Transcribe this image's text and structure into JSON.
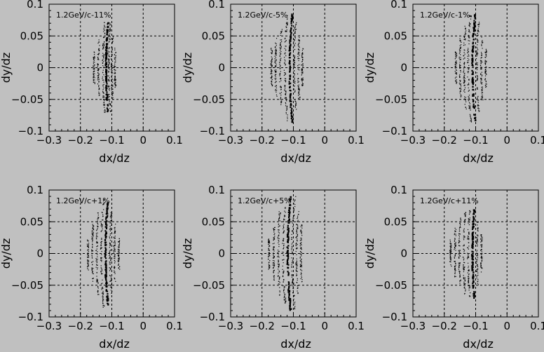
{
  "colors": {
    "background": "#c0c0c0",
    "foreground": "#000000"
  },
  "chart_data": [
    {
      "type": "scatter",
      "title": "1.2GeV/c-11%",
      "xlabel": "dx/dz",
      "ylabel": "dy/dz",
      "xlim": [
        -0.3,
        0.1
      ],
      "ylim": [
        -0.1,
        0.1
      ],
      "xticks": [
        "−0.3",
        "−0.2",
        "−0.1",
        "0",
        "0.1"
      ],
      "yticks": [
        "0.1",
        "0.05",
        "0",
        "−0.05",
        "−0.1"
      ],
      "grid": "dashed at x=-0.2,-0.1,0 and y=0.05,0,-0.05",
      "bands": [
        {
          "x0": -0.157,
          "halfheight": 0.025
        },
        {
          "x0": -0.143,
          "halfheight": 0.045
        },
        {
          "x0": -0.128,
          "halfheight": 0.07
        },
        {
          "x0": -0.118,
          "halfheight": 0.07,
          "dominant": true
        },
        {
          "x0": -0.11,
          "halfheight": 0.07
        },
        {
          "x0": -0.1,
          "halfheight": 0.05
        },
        {
          "x0": -0.09,
          "halfheight": 0.03
        }
      ]
    },
    {
      "type": "scatter",
      "title": "1.2GeV/c-5%",
      "xlabel": "dx/dz",
      "ylabel": "dy/dz",
      "xlim": [
        -0.3,
        0.1
      ],
      "ylim": [
        -0.1,
        0.1
      ],
      "xticks": [
        "−0.3",
        "−0.2",
        "−0.1",
        "0",
        "0.1"
      ],
      "yticks": [
        "0.1",
        "0.05",
        "0",
        "−0.05",
        "−0.1"
      ],
      "grid": "dashed at x=-0.2,-0.1,0 and y=0.05,0,-0.05",
      "bands": [
        {
          "x0": -0.17,
          "halfheight": 0.03
        },
        {
          "x0": -0.157,
          "halfheight": 0.045
        },
        {
          "x0": -0.142,
          "halfheight": 0.06
        },
        {
          "x0": -0.127,
          "halfheight": 0.085
        },
        {
          "x0": -0.112,
          "halfheight": 0.085,
          "dominant": true
        },
        {
          "x0": -0.098,
          "halfheight": 0.07
        },
        {
          "x0": -0.084,
          "halfheight": 0.05
        },
        {
          "x0": -0.072,
          "halfheight": 0.03
        }
      ]
    },
    {
      "type": "scatter",
      "title": "1.2GeV/c-1%",
      "xlabel": "dx/dz",
      "ylabel": "dy/dz",
      "xlim": [
        -0.3,
        0.1
      ],
      "ylim": [
        -0.1,
        0.1
      ],
      "xticks": [
        "−0.3",
        "−0.2",
        "−0.1",
        "0",
        "0.1"
      ],
      "yticks": [
        "0.1",
        "0.05",
        "0",
        "−0.05",
        "−0.1"
      ],
      "grid": "dashed at x=-0.2,-0.1,0 and y=0.05,0,-0.05",
      "bands": [
        {
          "x0": -0.163,
          "halfheight": 0.025
        },
        {
          "x0": -0.15,
          "halfheight": 0.045
        },
        {
          "x0": -0.137,
          "halfheight": 0.065
        },
        {
          "x0": -0.124,
          "halfheight": 0.085
        },
        {
          "x0": -0.11,
          "halfheight": 0.085,
          "dominant": true
        },
        {
          "x0": -0.096,
          "halfheight": 0.07
        },
        {
          "x0": -0.082,
          "halfheight": 0.05
        },
        {
          "x0": -0.068,
          "halfheight": 0.03
        }
      ]
    },
    {
      "type": "scatter",
      "title": "1.2GeV/c+1%",
      "xlabel": "dx/dz",
      "ylabel": "dy/dz",
      "xlim": [
        -0.3,
        0.1
      ],
      "ylim": [
        -0.1,
        0.1
      ],
      "xticks": [
        "−0.3",
        "−0.2",
        "−0.1",
        "0",
        "0.1"
      ],
      "yticks": [
        "0.1",
        "0.05",
        "0",
        "−0.05",
        "−0.1"
      ],
      "grid": "dashed at x=-0.2,-0.1,0 and y=0.05,0,-0.05",
      "bands": [
        {
          "x0": -0.176,
          "halfheight": 0.025
        },
        {
          "x0": -0.162,
          "halfheight": 0.045
        },
        {
          "x0": -0.148,
          "halfheight": 0.065
        },
        {
          "x0": -0.134,
          "halfheight": 0.085
        },
        {
          "x0": -0.12,
          "halfheight": 0.08,
          "dominant": true
        },
        {
          "x0": -0.106,
          "halfheight": 0.065
        },
        {
          "x0": -0.092,
          "halfheight": 0.045
        },
        {
          "x0": -0.078,
          "halfheight": 0.025
        }
      ]
    },
    {
      "type": "scatter",
      "title": "1.2GeV/c+5%",
      "xlabel": "dx/dz",
      "ylabel": "dy/dz",
      "xlim": [
        -0.3,
        0.1
      ],
      "ylim": [
        -0.1,
        0.1
      ],
      "xticks": [
        "−0.3",
        "−0.2",
        "−0.1",
        "0",
        "0.1"
      ],
      "yticks": [
        "0.1",
        "0.05",
        "0",
        "−0.05",
        "−0.1"
      ],
      "grid": "dashed at x=-0.2,-0.1,0 and y=0.05,0,-0.05",
      "bands": [
        {
          "x0": -0.178,
          "halfheight": 0.025
        },
        {
          "x0": -0.163,
          "halfheight": 0.045
        },
        {
          "x0": -0.148,
          "halfheight": 0.065
        },
        {
          "x0": -0.133,
          "halfheight": 0.08
        },
        {
          "x0": -0.118,
          "halfheight": 0.09,
          "dominant": true
        },
        {
          "x0": -0.104,
          "halfheight": 0.09
        },
        {
          "x0": -0.09,
          "halfheight": 0.065
        },
        {
          "x0": -0.076,
          "halfheight": 0.045
        }
      ]
    },
    {
      "type": "scatter",
      "title": "1.2GeV/c+11%",
      "xlabel": "dx/dz",
      "ylabel": "dy/dz",
      "xlim": [
        -0.3,
        0.1
      ],
      "ylim": [
        -0.1,
        0.1
      ],
      "xticks": [
        "−0.3",
        "−0.2",
        "−0.1",
        "0",
        "0.1"
      ],
      "yticks": [
        "0.1",
        "0.05",
        "0",
        "−0.05",
        "−0.1"
      ],
      "grid": "dashed at x=-0.2,-0.1,0 and y=0.05,0,-0.05",
      "bands": [
        {
          "x0": -0.18,
          "halfheight": 0.02
        },
        {
          "x0": -0.166,
          "halfheight": 0.04
        },
        {
          "x0": -0.152,
          "halfheight": 0.055
        },
        {
          "x0": -0.138,
          "halfheight": 0.065
        },
        {
          "x0": -0.124,
          "halfheight": 0.07
        },
        {
          "x0": -0.11,
          "halfheight": 0.07,
          "dominant": true
        },
        {
          "x0": -0.096,
          "halfheight": 0.05
        },
        {
          "x0": -0.082,
          "halfheight": 0.03
        }
      ]
    }
  ]
}
